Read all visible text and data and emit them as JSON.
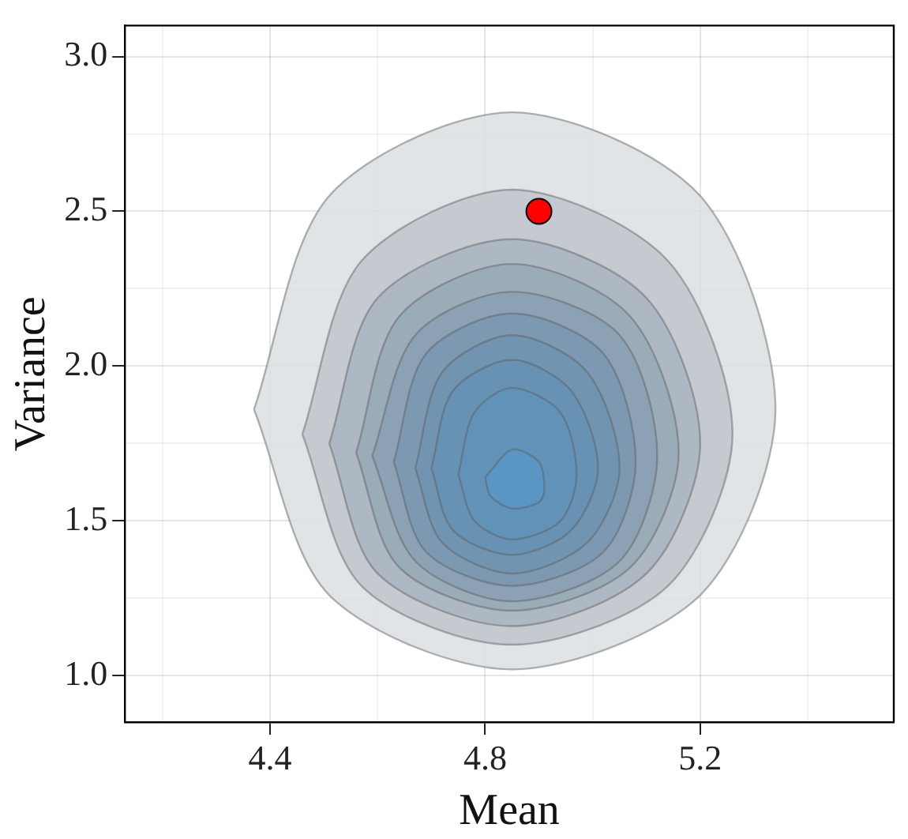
{
  "chart_data": {
    "type": "area",
    "xlabel": "Mean",
    "ylabel": "Variance",
    "xlim": [
      4.13,
      5.56
    ],
    "xticks": [
      {
        "value": 4.2,
        "label": null
      },
      4.4,
      {
        "value": 4.6,
        "label": null
      },
      4.8,
      {
        "value": 5.0,
        "label": null
      },
      5.2,
      {
        "value": 5.4,
        "label": null
      }
    ],
    "ylim": [
      0.85,
      3.1
    ],
    "yticks": [
      {
        "value": 1.0,
        "label": "1.0"
      },
      {
        "value": 1.25,
        "label": null
      },
      1.5,
      {
        "value": 1.75,
        "label": null
      },
      {
        "value": 2.0,
        "label": "2.0"
      },
      {
        "value": 2.25,
        "label": null
      },
      2.5,
      {
        "value": 2.75,
        "label": null
      },
      {
        "value": 3.0,
        "label": "3.0"
      }
    ],
    "grid": true,
    "series": [
      {
        "color": "#dcdfe2",
        "x": [
          4.37,
          4.51,
          4.85,
          5.2,
          5.34,
          5.2,
          4.85,
          4.51,
          4.37
        ],
        "values": [
          1.86,
          2.55,
          2.82,
          2.55,
          1.86,
          1.26,
          1.02,
          1.26,
          1.86
        ]
      },
      {
        "color": "#bfc6cd",
        "x": [
          4.46,
          4.57,
          4.85,
          5.14,
          5.26,
          5.14,
          4.85,
          4.57,
          4.46
        ],
        "values": [
          1.78,
          2.34,
          2.57,
          2.34,
          1.78,
          1.29,
          1.1,
          1.29,
          1.78
        ]
      },
      {
        "color": "#a9b5c0",
        "x": [
          4.51,
          4.6,
          4.85,
          5.1,
          5.2,
          5.1,
          4.85,
          4.6,
          4.51
        ],
        "values": [
          1.75,
          2.22,
          2.41,
          2.22,
          1.75,
          1.33,
          1.16,
          1.33,
          1.75
        ]
      },
      {
        "color": "#98a9b7",
        "x": [
          4.56,
          4.64,
          4.85,
          5.07,
          5.16,
          5.07,
          4.85,
          4.64,
          4.56
        ],
        "values": [
          1.72,
          2.16,
          2.33,
          2.16,
          1.72,
          1.35,
          1.21,
          1.35,
          1.72
        ]
      },
      {
        "color": "#8aa0b3",
        "x": [
          4.59,
          4.67,
          4.85,
          5.05,
          5.12,
          5.05,
          4.85,
          4.67,
          4.59
        ],
        "values": [
          1.71,
          2.1,
          2.24,
          2.1,
          1.71,
          1.37,
          1.24,
          1.37,
          1.71
        ]
      },
      {
        "color": "#7a98b0",
        "x": [
          4.63,
          4.69,
          4.85,
          5.02,
          5.08,
          5.02,
          4.85,
          4.69,
          4.63
        ],
        "values": [
          1.69,
          2.04,
          2.17,
          2.04,
          1.69,
          1.4,
          1.29,
          1.4,
          1.69
        ]
      },
      {
        "color": "#6f93b0",
        "x": [
          4.67,
          4.72,
          4.85,
          4.99,
          5.05,
          4.99,
          4.85,
          4.72,
          4.67
        ],
        "values": [
          1.67,
          1.98,
          2.1,
          1.98,
          1.67,
          1.43,
          1.33,
          1.43,
          1.67
        ]
      },
      {
        "color": "#6692b5",
        "x": [
          4.7,
          4.74,
          4.85,
          4.96,
          5.01,
          4.96,
          4.85,
          4.74,
          4.7
        ],
        "values": [
          1.67,
          1.92,
          2.02,
          1.92,
          1.67,
          1.47,
          1.39,
          1.47,
          1.67
        ]
      },
      {
        "color": "#6093ba",
        "x": [
          4.75,
          4.78,
          4.85,
          4.94,
          4.97,
          4.94,
          4.85,
          4.78,
          4.75
        ],
        "values": [
          1.65,
          1.85,
          1.93,
          1.85,
          1.65,
          1.5,
          1.44,
          1.5,
          1.65
        ]
      },
      {
        "color": "#5a95c4",
        "x": [
          4.8,
          4.85,
          4.9,
          4.91,
          4.9,
          4.85,
          4.81,
          4.8
        ],
        "values": [
          1.64,
          1.73,
          1.69,
          1.6,
          1.56,
          1.54,
          1.58,
          1.64
        ]
      },
      {
        "type": "scatter",
        "color": "#ff0000",
        "marker": "circle",
        "x": [
          4.9
        ],
        "values": [
          2.5
        ]
      }
    ]
  }
}
